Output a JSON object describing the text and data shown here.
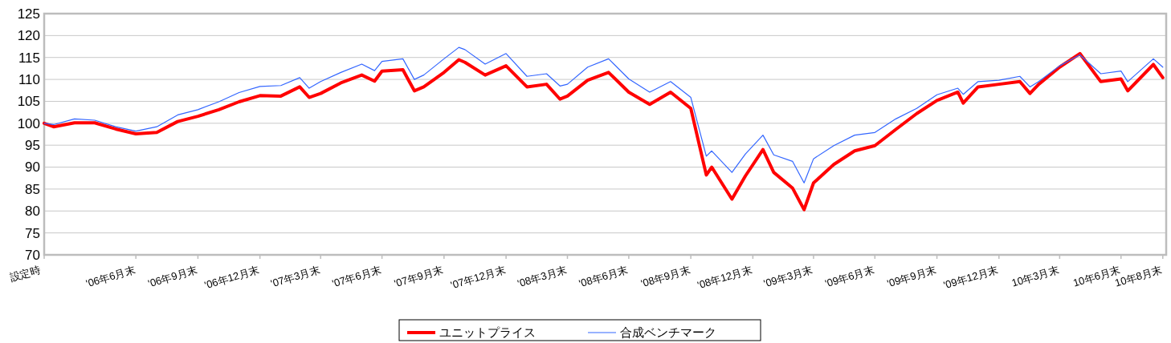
{
  "chart_data": {
    "type": "line",
    "x": [
      "2006-02-14",
      "2006-02-28",
      "2006-03-31",
      "2006-04-30",
      "2006-05-31",
      "2006-06-30",
      "2006-07-31",
      "2006-08-31",
      "2006-09-30",
      "2006-10-31",
      "2006-11-30",
      "2006-12-31",
      "2007-01-31",
      "2007-02-28",
      "2007-03-14",
      "2007-03-31",
      "2007-04-30",
      "2007-05-31",
      "2007-06-19",
      "2007-06-30",
      "2007-07-31",
      "2007-08-17",
      "2007-08-31",
      "2007-09-30",
      "2007-10-22",
      "2007-10-31",
      "2007-11-30",
      "2007-12-31",
      "2008-01-31",
      "2008-02-29",
      "2008-03-20",
      "2008-03-31",
      "2008-04-30",
      "2008-05-31",
      "2008-06-30",
      "2008-07-31",
      "2008-08-31",
      "2008-09-30",
      "2008-10-23",
      "2008-10-31",
      "2008-11-30",
      "2008-12-20",
      "2009-01-15",
      "2009-01-31",
      "2009-02-28",
      "2009-03-17",
      "2009-03-31",
      "2009-04-30",
      "2009-05-31",
      "2009-06-30",
      "2009-07-31",
      "2009-08-31",
      "2009-09-30",
      "2009-10-31",
      "2009-11-08",
      "2009-11-30",
      "2009-12-31",
      "2010-01-31",
      "2010-02-15",
      "2010-02-28",
      "2010-03-31",
      "2010-04-30",
      "2010-05-31",
      "2010-06-30",
      "2010-07-10",
      "2010-08-17",
      "2010-08-31"
    ],
    "series": [
      {
        "name": "ユニットプライス",
        "color": "#ff0000",
        "values": [
          100,
          99.2,
          100.1,
          100.1,
          98.7,
          97.6,
          97.9,
          100.4,
          101.6,
          103.1,
          104.9,
          106.3,
          106.2,
          108.3,
          105.9,
          106.8,
          109.2,
          111,
          109.6,
          111.9,
          112.2,
          107.4,
          108.3,
          111.6,
          114.5,
          113.9,
          111,
          113.1,
          108.3,
          108.9,
          105.5,
          106.2,
          109.8,
          111.6,
          107.1,
          104.3,
          107.1,
          103.4,
          88.2,
          90,
          82.7,
          88,
          94,
          88.8,
          85.2,
          80.3,
          86.4,
          90.6,
          93.7,
          94.9,
          98.6,
          102.2,
          105.2,
          107.1,
          104.6,
          108.3,
          108.9,
          109.5,
          106.8,
          108.9,
          112.8,
          115.9,
          109.5,
          110.1,
          107.4,
          113.4,
          110.4
        ]
      },
      {
        "name": "合成ベンチマーク",
        "color": "#3366ff",
        "values": [
          100,
          99.7,
          101,
          100.7,
          99.2,
          98.2,
          99.2,
          101.9,
          103.1,
          104.9,
          107,
          108.4,
          108.6,
          110.4,
          108,
          109.5,
          111.6,
          113.5,
          112,
          114.1,
          114.7,
          110,
          111,
          114.7,
          117.3,
          116.8,
          113.5,
          115.9,
          110.7,
          111.3,
          108.5,
          108.9,
          112.8,
          114.7,
          110.1,
          107.1,
          109.5,
          105.9,
          92.5,
          93.7,
          88.8,
          93,
          97.3,
          92.8,
          91.3,
          86.4,
          91.9,
          94.9,
          97.3,
          97.9,
          101,
          103.4,
          106.5,
          108,
          106.6,
          109.5,
          109.8,
          110.7,
          108.3,
          109.5,
          113.1,
          115.6,
          111.3,
          111.9,
          109.5,
          114.7,
          112.8
        ]
      }
    ],
    "ylim": [
      70,
      125
    ],
    "yticks": [
      70,
      75,
      80,
      85,
      90,
      95,
      100,
      105,
      110,
      115,
      120,
      125
    ],
    "xlim": [
      "2006-02-14",
      "2010-09-05"
    ],
    "xticks": [
      {
        "value": "2006-02-14",
        "label": "設定時"
      },
      {
        "value": "2006-06-30",
        "label": "'06年6月末"
      },
      {
        "value": "2006-09-30",
        "label": "'06年9月末"
      },
      {
        "value": "2006-12-31",
        "label": "'06年12月末"
      },
      {
        "value": "2007-03-31",
        "label": "'07年3月末"
      },
      {
        "value": "2007-06-30",
        "label": "'07年6月末"
      },
      {
        "value": "2007-09-30",
        "label": "'07年9月末"
      },
      {
        "value": "2007-12-31",
        "label": "'07年12月末"
      },
      {
        "value": "2008-03-31",
        "label": "'08年3月末"
      },
      {
        "value": "2008-06-30",
        "label": "'08年6月末"
      },
      {
        "value": "2008-09-30",
        "label": "'08年9月末"
      },
      {
        "value": "2008-12-31",
        "label": "'08年12月末"
      },
      {
        "value": "2009-03-31",
        "label": "'09年3月末"
      },
      {
        "value": "2009-06-30",
        "label": "'09年6月末"
      },
      {
        "value": "2009-09-30",
        "label": "'09年9月末"
      },
      {
        "value": "2009-12-31",
        "label": "'09年12月末"
      },
      {
        "value": "2010-03-31",
        "label": "10年3月末"
      },
      {
        "value": "2010-06-30",
        "label": "10年6月末"
      },
      {
        "value": "2010-08-31",
        "label": "10年8月末"
      }
    ],
    "grid": "y",
    "legend": "bottom",
    "marker": "none",
    "line_style": "solid"
  }
}
